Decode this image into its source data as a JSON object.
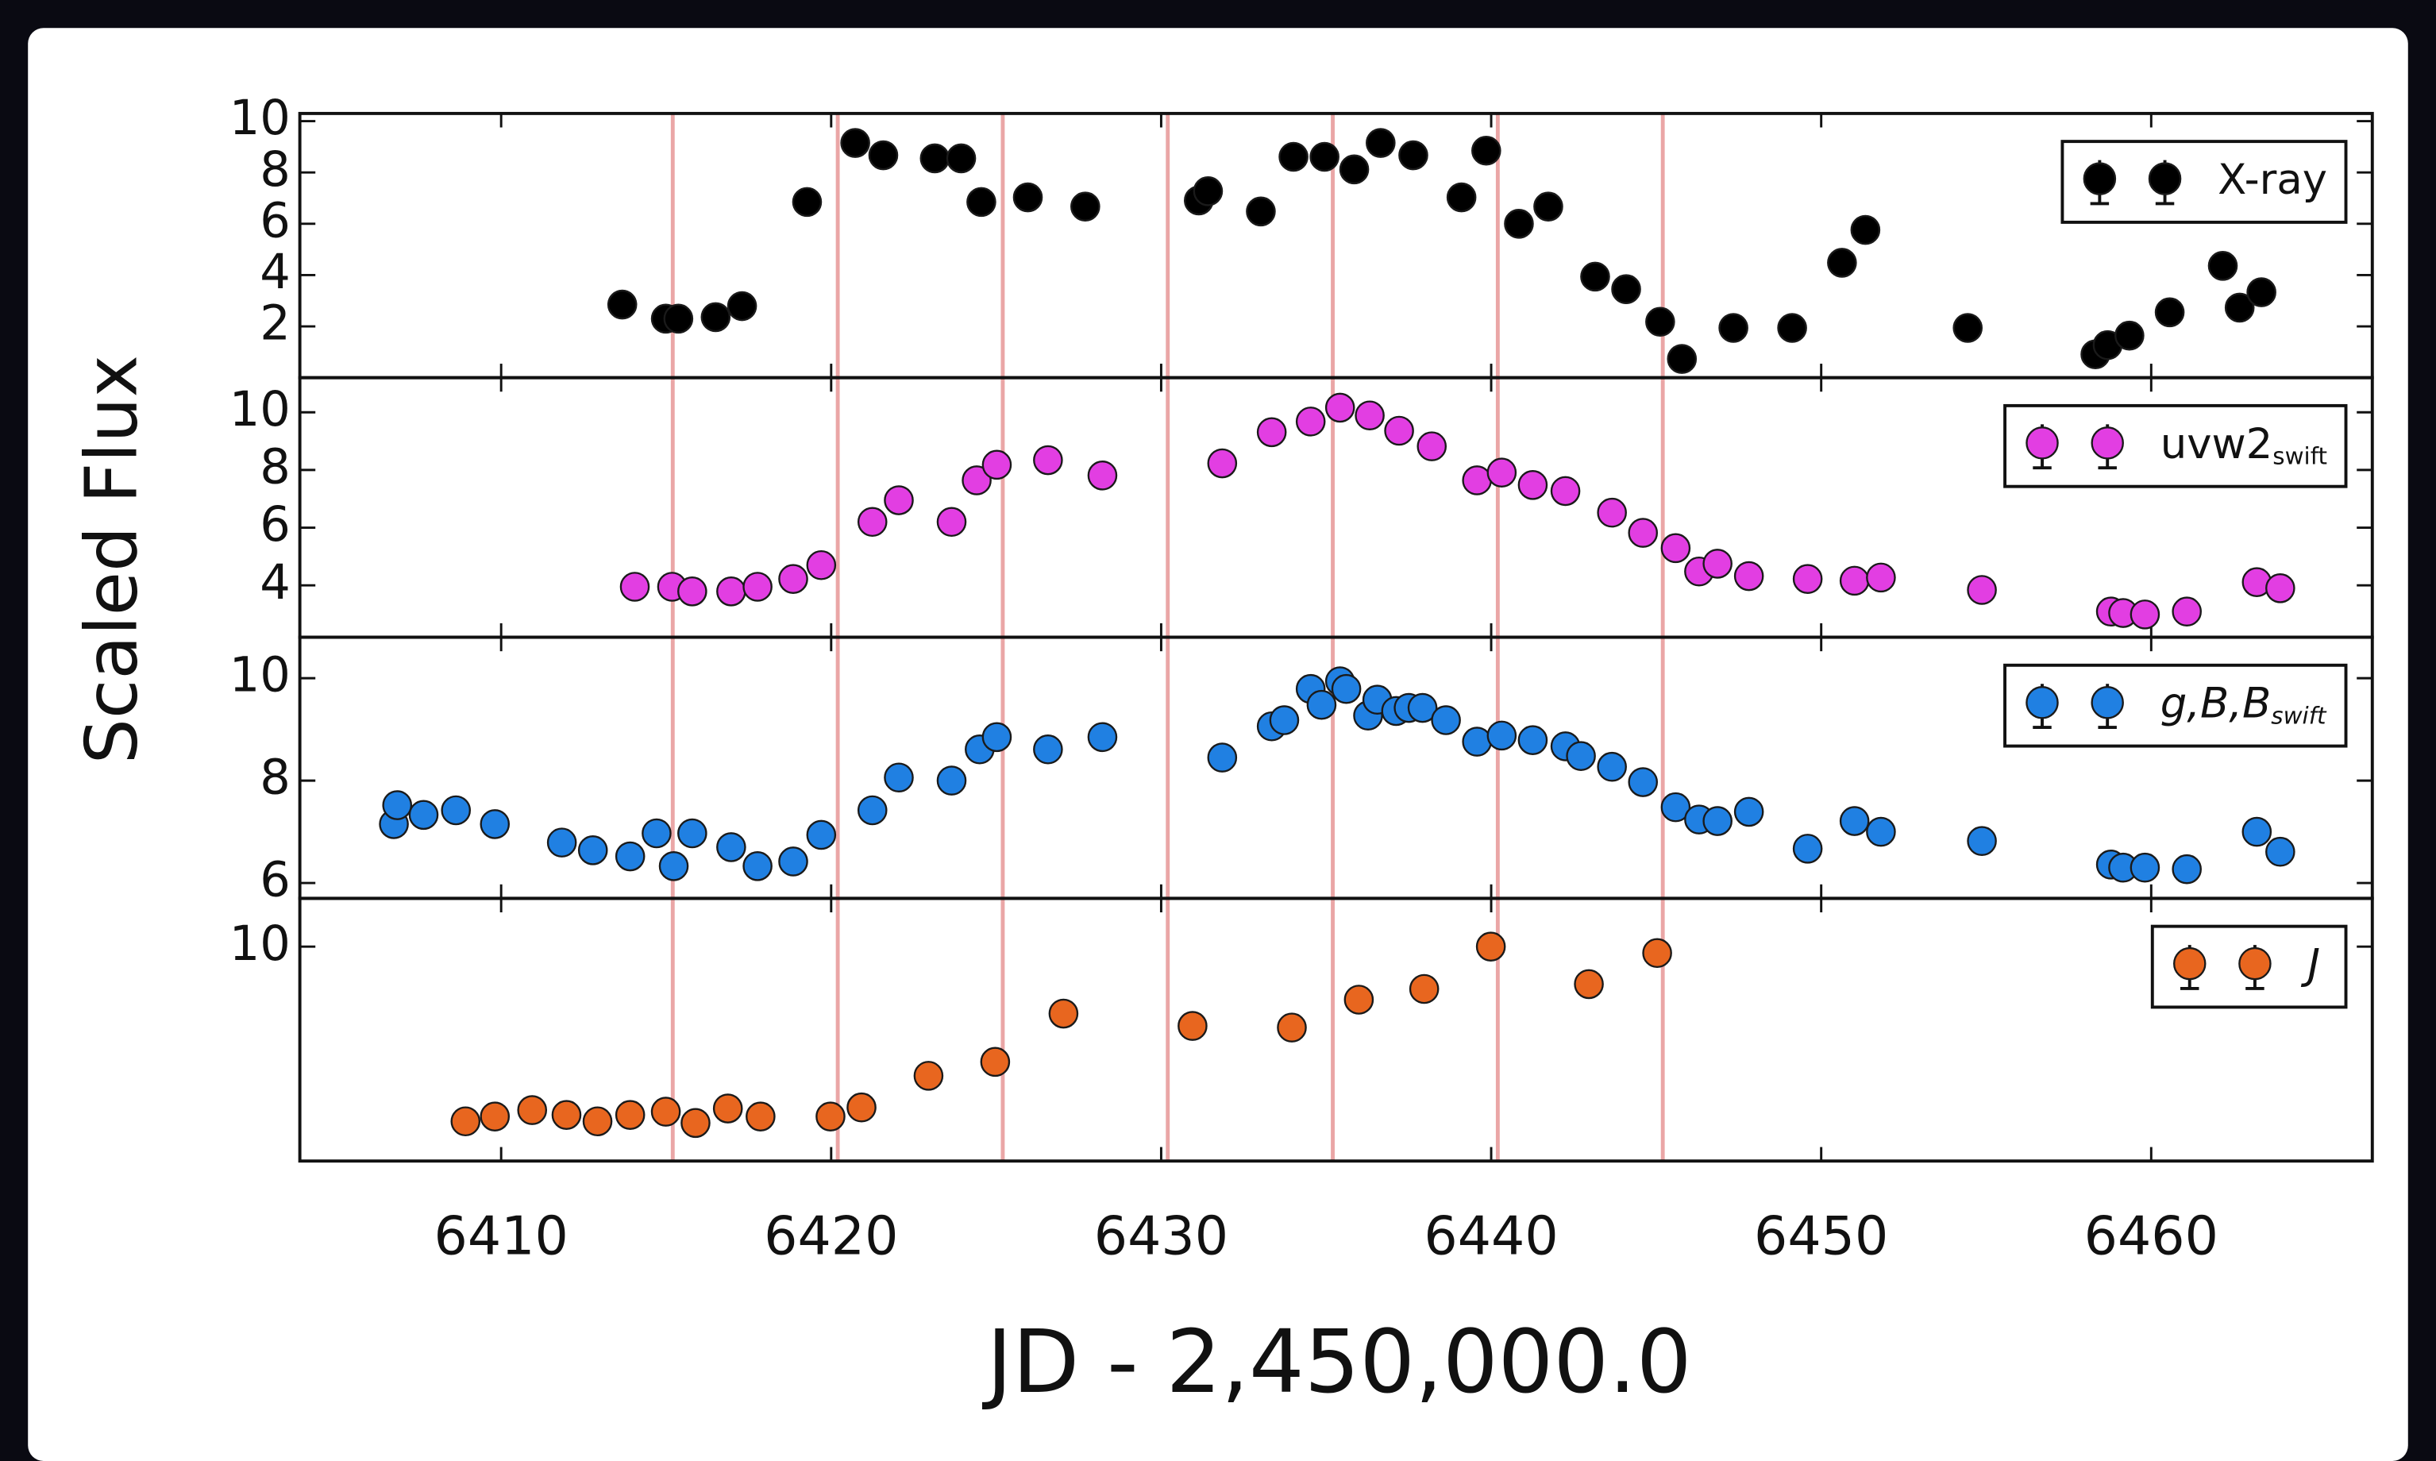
{
  "chart_data": {
    "type": "scatter",
    "y_label": "Scaled Flux",
    "x_label": "JD - 2,450,000.0",
    "xlim": [
      6403.9,
      6466.7
    ],
    "xticks": [
      6410,
      6420,
      6430,
      6440,
      6450,
      6460
    ],
    "vlines": [
      6415.2,
      6420.2,
      6425.2,
      6430.2,
      6435.2,
      6440.2,
      6445.2
    ],
    "vline_color": "#eaa6a6",
    "legend": "upper right",
    "panels": [
      {
        "ylim": [
          0,
          10.3
        ],
        "yticks": [
          2,
          4,
          6,
          8,
          10
        ],
        "series": [
          {
            "name": "X-ray",
            "color": "#000000",
            "x": [
              6413.67,
              6414.99,
              6415.37,
              6416.5,
              6417.3,
              6419.27,
              6420.73,
              6421.58,
              6423.14,
              6423.94,
              6424.55,
              6425.96,
              6427.7,
              6431.14,
              6431.42,
              6433.02,
              6434.01,
              6434.95,
              6435.85,
              6436.65,
              6437.64,
              6439.1,
              6439.85,
              6440.84,
              6441.73,
              6443.15,
              6444.09,
              6445.12,
              6445.78,
              6447.34,
              6449.12,
              6450.63,
              6451.34,
              6454.44,
              6458.31,
              6458.68,
              6459.34,
              6460.56,
              6462.17,
              6462.68,
              6463.34
            ],
            "values": [
              2.85,
              2.3,
              2.3,
              2.36,
              2.79,
              6.85,
              9.15,
              8.67,
              8.55,
              8.55,
              6.85,
              7.03,
              6.67,
              6.91,
              7.27,
              6.48,
              8.61,
              8.61,
              8.12,
              9.15,
              8.67,
              7.03,
              8.85,
              6.0,
              6.67,
              3.94,
              3.45,
              2.18,
              0.73,
              1.94,
              1.94,
              4.48,
              5.76,
              1.94,
              0.91,
              1.27,
              1.64,
              2.55,
              4.36,
              2.73,
              3.33
            ]
          }
        ]
      },
      {
        "ylim": [
          2.2,
          11.2
        ],
        "yticks": [
          4,
          6,
          8,
          10
        ],
        "series": [
          {
            "name": "uvw2",
            "name_subscript": "swift",
            "color": "#e23ee2",
            "x": [
              6414.05,
              6415.18,
              6415.79,
              6416.97,
              6417.77,
              6418.85,
              6419.7,
              6421.25,
              6422.05,
              6423.65,
              6424.41,
              6425.02,
              6426.57,
              6428.22,
              6431.85,
              6433.35,
              6434.53,
              6435.42,
              6436.32,
              6437.21,
              6438.2,
              6439.57,
              6440.32,
              6441.26,
              6442.25,
              6443.66,
              6444.6,
              6445.59,
              6446.3,
              6446.86,
              6447.81,
              6449.59,
              6451.01,
              6451.81,
              6454.87,
              6458.78,
              6459.15,
              6459.81,
              6461.08,
              6463.2,
              6463.91
            ],
            "values": [
              3.95,
              3.95,
              3.79,
              3.79,
              3.95,
              4.22,
              4.7,
              6.2,
              6.95,
              6.2,
              7.64,
              8.18,
              8.34,
              7.81,
              8.23,
              9.31,
              9.68,
              10.16,
              9.89,
              9.36,
              8.82,
              7.64,
              7.91,
              7.48,
              7.27,
              6.52,
              5.82,
              5.29,
              4.48,
              4.75,
              4.32,
              4.22,
              4.16,
              4.27,
              3.84,
              3.09,
              3.04,
              2.99,
              3.09,
              4.11,
              3.9
            ]
          }
        ]
      },
      {
        "ylim": [
          5.7,
          10.8
        ],
        "yticks": [
          6,
          8,
          10
        ],
        "series": [
          {
            "name": "g,B,B",
            "name_subscript": "swift",
            "font_style": "italic",
            "color": "#2080e2",
            "x": [
              6406.75,
              6406.85,
              6407.65,
              6408.63,
              6409.81,
              6411.84,
              6412.78,
              6413.91,
              6414.71,
              6415.23,
              6415.79,
              6416.97,
              6417.77,
              6418.85,
              6419.7,
              6421.25,
              6422.05,
              6423.65,
              6424.5,
              6425.02,
              6426.57,
              6428.22,
              6431.85,
              6433.35,
              6433.73,
              6434.53,
              6434.86,
              6435.42,
              6435.61,
              6436.27,
              6436.55,
              6437.12,
              6437.5,
              6437.92,
              6438.63,
              6439.57,
              6440.32,
              6441.26,
              6442.25,
              6442.72,
              6443.66,
              6444.6,
              6445.59,
              6446.3,
              6446.86,
              6447.81,
              6449.59,
              6451.01,
              6451.81,
              6454.87,
              6458.78,
              6459.15,
              6459.81,
              6461.08,
              6463.2,
              6463.91
            ],
            "values": [
              7.15,
              7.52,
              7.33,
              7.42,
              7.15,
              6.79,
              6.64,
              6.52,
              6.97,
              6.33,
              6.97,
              6.7,
              6.33,
              6.42,
              6.94,
              7.42,
              8.06,
              8.0,
              8.61,
              8.85,
              8.61,
              8.85,
              8.45,
              9.06,
              9.18,
              9.79,
              9.48,
              9.94,
              9.79,
              9.27,
              9.58,
              9.36,
              9.42,
              9.42,
              9.18,
              8.76,
              8.88,
              8.79,
              8.67,
              8.48,
              8.27,
              7.97,
              7.48,
              7.24,
              7.21,
              7.39,
              6.67,
              7.21,
              7.0,
              6.82,
              6.36,
              6.3,
              6.3,
              6.27,
              7.0,
              6.61
            ]
          }
        ]
      },
      {
        "ylim": [
          6.0,
          10.9
        ],
        "yticks": [
          10
        ],
        "series": [
          {
            "name": "J",
            "font_style": "italic",
            "color": "#e8661f",
            "x": [
              6408.92,
              6409.81,
              6410.94,
              6411.98,
              6412.92,
              6413.91,
              6414.99,
              6415.89,
              6416.87,
              6417.86,
              6419.98,
              6420.92,
              6422.95,
              6424.97,
              6427.04,
              6430.95,
              6433.96,
              6435.99,
              6437.97,
              6439.99,
              6442.96,
              6445.03
            ],
            "values": [
              6.74,
              6.83,
              6.95,
              6.86,
              6.74,
              6.86,
              6.92,
              6.71,
              6.98,
              6.83,
              6.83,
              7.0,
              7.59,
              7.85,
              8.75,
              8.52,
              8.49,
              9.01,
              9.21,
              10.0,
              9.3,
              9.88
            ]
          }
        ]
      }
    ]
  }
}
